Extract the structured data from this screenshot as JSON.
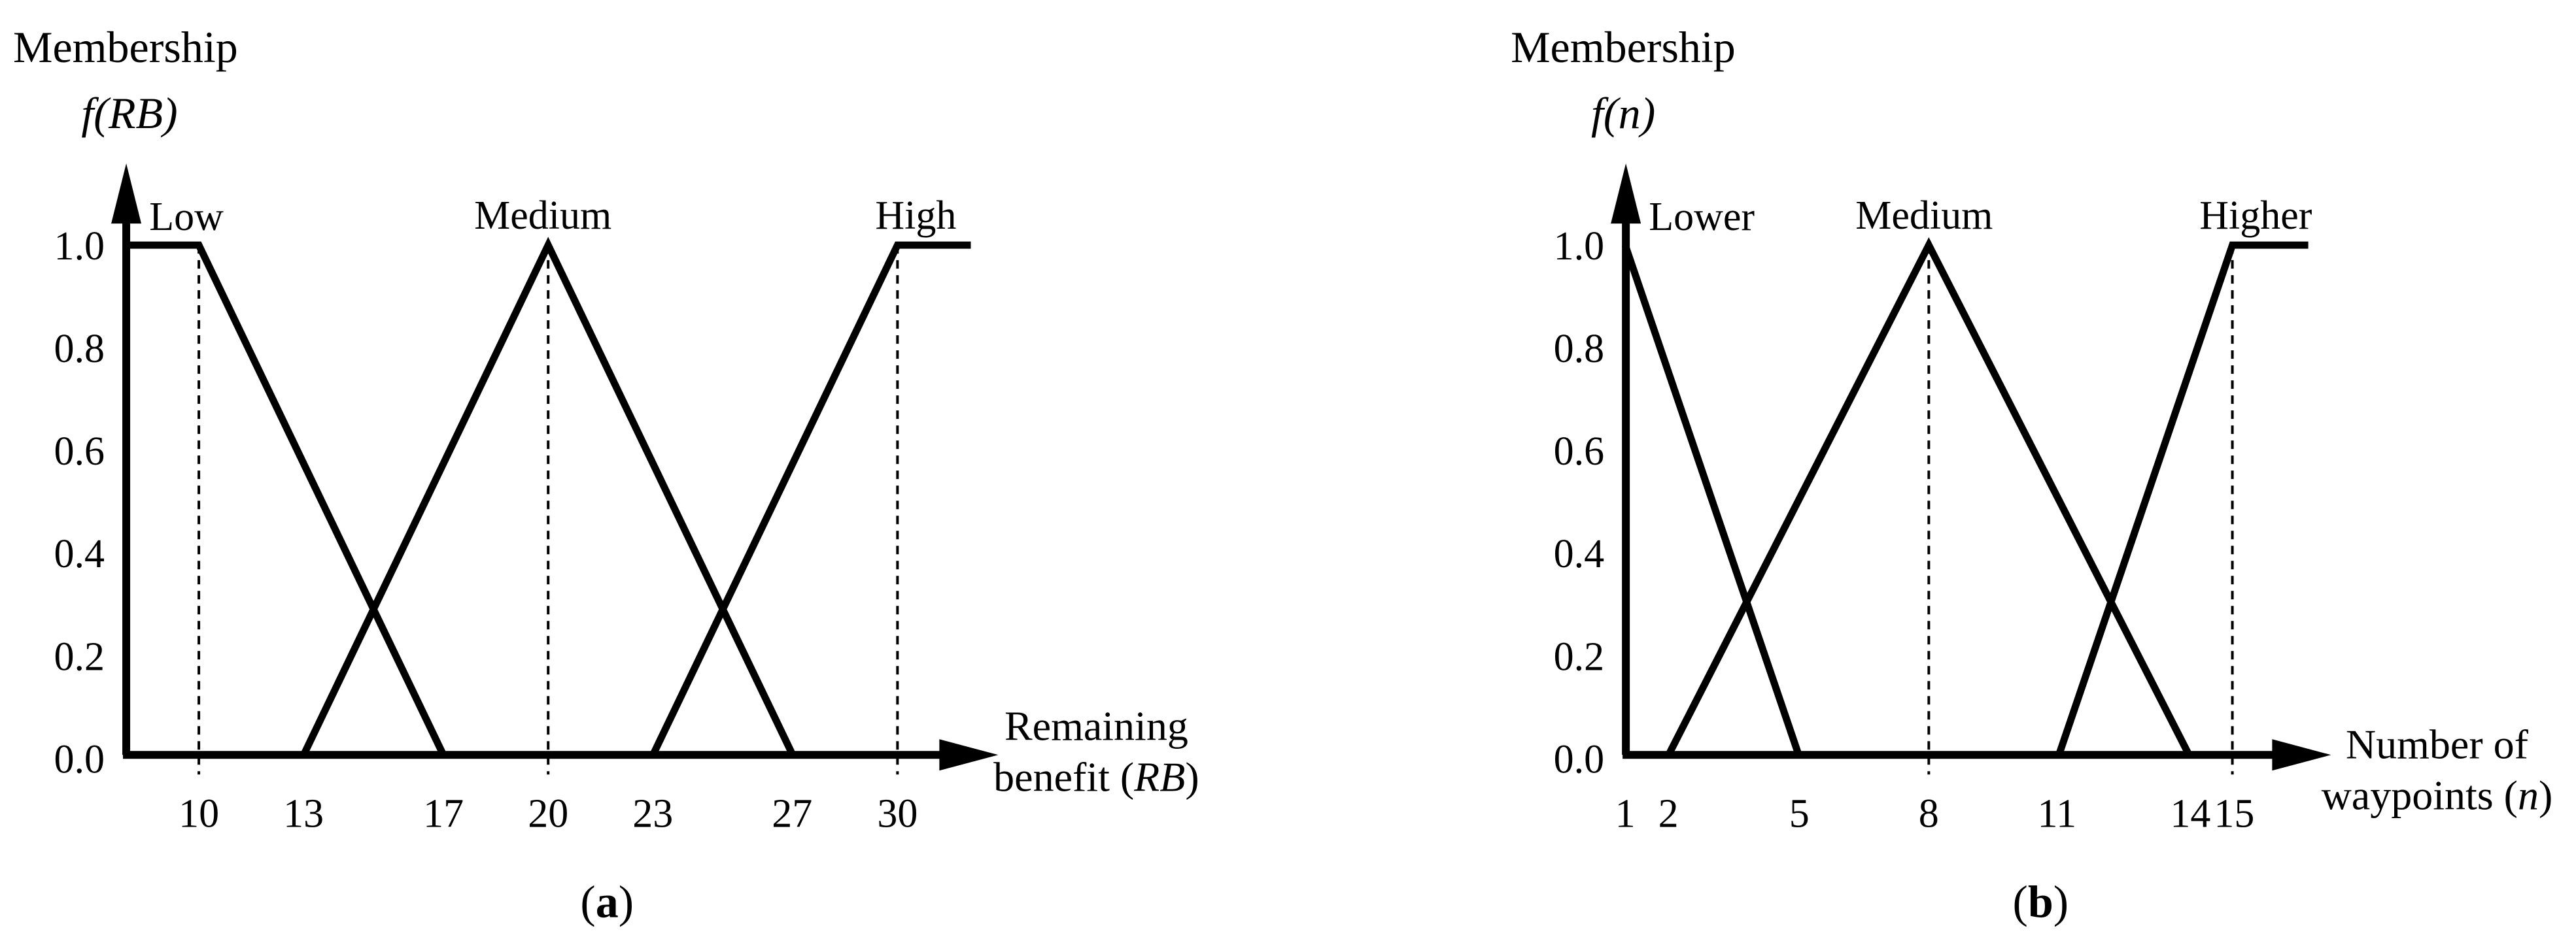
{
  "figure": {
    "panels": [
      {
        "y_axis_title_line1": "Membership",
        "y_axis_title_line2": "f(RB)",
        "y_ticks": [
          "1.0",
          "0.8",
          "0.6",
          "0.4",
          "0.2",
          "0.0"
        ],
        "x_ticks": [
          "10",
          "13",
          "17",
          "20",
          "23",
          "27",
          "30"
        ],
        "curve_labels": [
          "Low",
          "Medium",
          "High"
        ],
        "x_axis_title_line1": "Remaining",
        "x_axis_title_line2_pre": "benefit (",
        "x_axis_title_line2_var": "RB",
        "x_axis_title_line2_post": ")",
        "caption_pre": "(",
        "caption_letter": "a",
        "caption_post": ")"
      },
      {
        "y_axis_title_line1": "Membership",
        "y_axis_title_line2": "f(n)",
        "y_ticks": [
          "1.0",
          "0.8",
          "0.6",
          "0.4",
          "0.2",
          "0.0"
        ],
        "x_ticks": [
          "1",
          "2",
          "5",
          "8",
          "11",
          "14",
          "15"
        ],
        "curve_labels": [
          "Lower",
          "Medium",
          "Higher"
        ],
        "x_axis_title_line1": "Number of",
        "x_axis_title_line2_pre": "waypoints (",
        "x_axis_title_line2_var": "n",
        "x_axis_title_line2_post": ")",
        "caption_pre": "(",
        "caption_letter": "b",
        "caption_post": ")"
      }
    ]
  },
  "chart_data": [
    {
      "type": "line",
      "title": "Fuzzy membership functions of remaining benefit",
      "xlabel": "Remaining benefit (RB)",
      "ylabel": "Membership f(RB)",
      "xlim": [
        7.9,
        33.5
      ],
      "ylim": [
        0.0,
        1.0
      ],
      "x_ticks": [
        10,
        13,
        17,
        20,
        23,
        27,
        30
      ],
      "y_ticks": [
        0.0,
        0.2,
        0.4,
        0.6,
        0.8,
        1.0
      ],
      "grid": false,
      "line_color": "#000000",
      "series": [
        {
          "name": "Low",
          "points": [
            [
              7.92,
              1.0
            ],
            [
              10,
              1.0
            ],
            [
              17,
              0.0
            ]
          ]
        },
        {
          "name": "Medium",
          "points": [
            [
              13,
              0.0
            ],
            [
              20,
              1.0
            ],
            [
              27,
              0.0
            ]
          ]
        },
        {
          "name": "High",
          "points": [
            [
              23,
              0.0
            ],
            [
              30,
              1.0
            ],
            [
              32.1,
              1.0
            ]
          ]
        }
      ],
      "dashed_guides_x": [
        10,
        20,
        30
      ]
    },
    {
      "type": "line",
      "title": "Fuzzy membership functions of number of waypoints",
      "xlabel": "Number of waypoints (n)",
      "ylabel": "Membership f(n)",
      "xlim": [
        1.0,
        17.2
      ],
      "ylim": [
        0.0,
        1.0
      ],
      "x_ticks": [
        1,
        2,
        5,
        8,
        11,
        14,
        15
      ],
      "y_ticks": [
        0.0,
        0.2,
        0.4,
        0.6,
        0.8,
        1.0
      ],
      "grid": false,
      "line_color": "#000000",
      "series": [
        {
          "name": "Lower",
          "points": [
            [
              1,
              1.0
            ],
            [
              5,
              0.0
            ]
          ]
        },
        {
          "name": "Medium",
          "points": [
            [
              2,
              0.0
            ],
            [
              8,
              1.0
            ],
            [
              14,
              0.0
            ]
          ]
        },
        {
          "name": "Higher",
          "points": [
            [
              11,
              0.0
            ],
            [
              15,
              1.0
            ],
            [
              16.75,
              1.0
            ]
          ]
        }
      ],
      "dashed_guides_x": [
        8,
        15
      ]
    }
  ]
}
